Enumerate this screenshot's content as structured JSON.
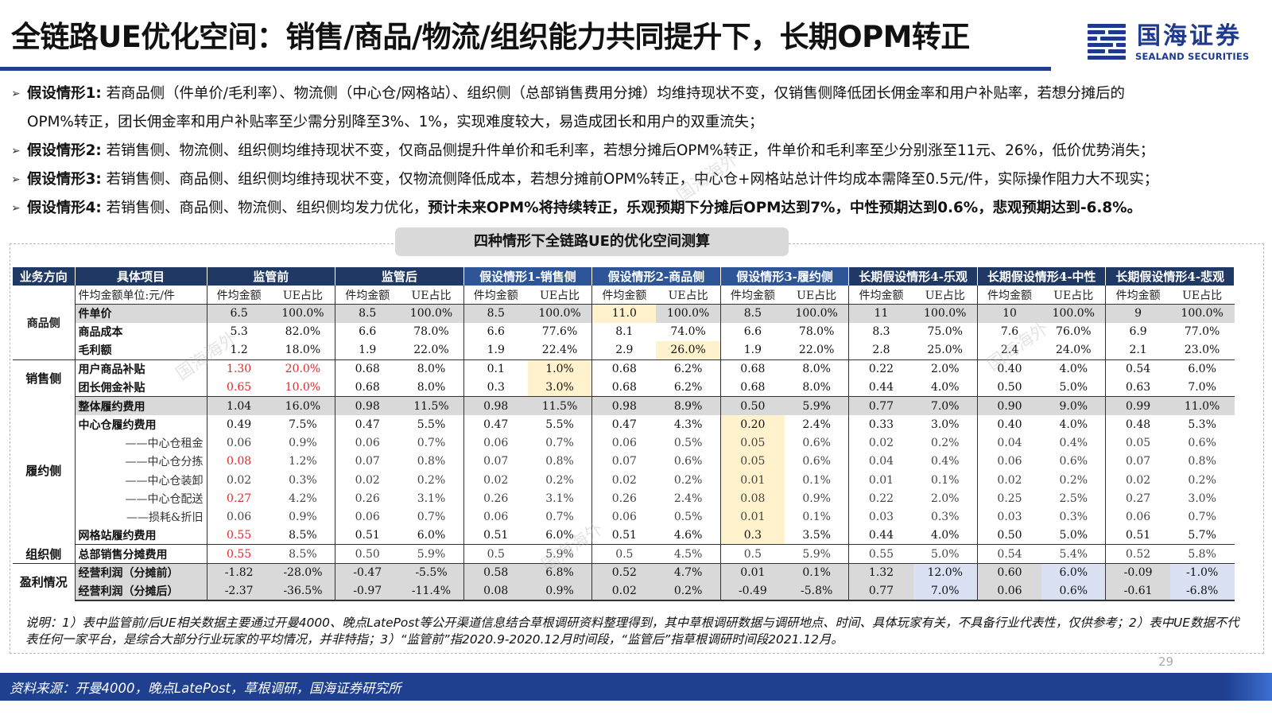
{
  "title": "全链路UE优化空间：销售/商品/物流/组织能力共同提升下，长期OPM转正",
  "logo": {
    "cn": "国海证券",
    "en": "SEALAND SECURITIES"
  },
  "bullets": [
    {
      "label": "假设情形1:",
      "text": "若商品侧（件单价/毛利率）、物流侧（中心仓/网格站）、组织侧（总部销售费用分摊）均维持现状不变，仅销售侧降低团长佣金率和用户补贴率，若想分摊后的",
      "cont": "OPM%转正，团长佣金率和用户补贴率至少需分别降至3%、1%，实现难度较大，易造成团长和用户的双重流失；"
    },
    {
      "label": "假设情形2:",
      "text": "若销售侧、物流侧、组织侧均维持现状不变，仅商品侧提升件单价和毛利率，若想分摊后OPM%转正，件单价和毛利率至少分别涨至11元、26%，低价优势消失；"
    },
    {
      "label": "假设情形3:",
      "text": "若销售侧、商品侧、组织侧均维持现状不变，仅物流侧降低成本，若想分摊前OPM%转正，中心仓+网格站总计件均成本需降至0.5元/件，实际操作阻力大不现实；"
    },
    {
      "label": "假设情形4:",
      "text": "若销售侧、商品侧、物流侧、组织侧均发力优化，",
      "bold": "预计未来OPM%将持续转正，乐观预期下分摊后OPM达到7%，中性预期达到0.6%，悲观预期达到-6.8%。"
    }
  ],
  "table_title": "四种情形下全链路UE的优化空间测算",
  "table": {
    "col_dir": "业务方向",
    "col_item": "具体项目",
    "scenarios": [
      "监管前",
      "监管后",
      "假设情形1-销售侧",
      "假设情形2-商品侧",
      "假设情形3-履约侧",
      "长期假设情形4-乐观",
      "长期假设情形4-中性",
      "长期假设情形4-悲观"
    ],
    "unit_label": "件均金额单位:元/件",
    "sub_amount": "件均金额",
    "sub_ratio": "UE占比",
    "categories": {
      "product": "商品侧",
      "sales": "销售侧",
      "fulfill": "履约侧",
      "org": "组织侧",
      "profit": "盈利情况"
    },
    "rows": [
      {
        "item": "件单价",
        "v": [
          "6.5",
          "100.0%",
          "8.5",
          "100.0%",
          "8.5",
          "100.0%",
          "11.0",
          "100.0%",
          "8.5",
          "100.0%",
          "11",
          "100.0%",
          "10",
          "100.0%",
          "9",
          "100.0%"
        ]
      },
      {
        "item": "商品成本",
        "v": [
          "5.3",
          "82.0%",
          "6.6",
          "78.0%",
          "6.6",
          "77.6%",
          "8.1",
          "74.0%",
          "6.6",
          "78.0%",
          "8.3",
          "75.0%",
          "7.6",
          "76.0%",
          "6.9",
          "77.0%"
        ]
      },
      {
        "item": "毛利额",
        "v": [
          "1.2",
          "18.0%",
          "1.9",
          "22.0%",
          "1.9",
          "22.4%",
          "2.9",
          "26.0%",
          "1.9",
          "22.0%",
          "2.8",
          "25.0%",
          "2.4",
          "24.0%",
          "2.1",
          "23.0%"
        ]
      },
      {
        "item": "用户商品补贴",
        "v": [
          "1.30",
          "20.0%",
          "0.68",
          "8.0%",
          "0.1",
          "1.0%",
          "0.68",
          "6.2%",
          "0.68",
          "8.0%",
          "0.22",
          "2.0%",
          "0.40",
          "4.0%",
          "0.54",
          "6.0%"
        ]
      },
      {
        "item": "团长佣金补贴",
        "v": [
          "0.65",
          "10.0%",
          "0.68",
          "8.0%",
          "0.3",
          "3.0%",
          "0.68",
          "6.2%",
          "0.68",
          "8.0%",
          "0.44",
          "4.0%",
          "0.50",
          "5.0%",
          "0.63",
          "7.0%"
        ]
      },
      {
        "item": "整体履约费用",
        "v": [
          "1.04",
          "16.0%",
          "0.98",
          "11.5%",
          "0.98",
          "11.5%",
          "0.98",
          "8.9%",
          "0.50",
          "5.9%",
          "0.77",
          "7.0%",
          "0.90",
          "9.0%",
          "0.99",
          "11.0%"
        ]
      },
      {
        "item": "中心仓履约费用",
        "v": [
          "0.49",
          "7.5%",
          "0.47",
          "5.5%",
          "0.47",
          "5.5%",
          "0.47",
          "4.3%",
          "0.20",
          "2.4%",
          "0.33",
          "3.0%",
          "0.40",
          "4.0%",
          "0.48",
          "5.3%"
        ]
      },
      {
        "item": "——中心仓租金",
        "v": [
          "0.06",
          "0.9%",
          "0.06",
          "0.7%",
          "0.06",
          "0.7%",
          "0.06",
          "0.5%",
          "0.05",
          "0.6%",
          "0.02",
          "0.2%",
          "0.04",
          "0.4%",
          "0.05",
          "0.6%"
        ]
      },
      {
        "item": "——中心仓分拣",
        "v": [
          "0.08",
          "1.2%",
          "0.07",
          "0.8%",
          "0.07",
          "0.8%",
          "0.07",
          "0.6%",
          "0.05",
          "0.6%",
          "0.04",
          "0.4%",
          "0.06",
          "0.6%",
          "0.07",
          "0.8%"
        ]
      },
      {
        "item": "——中心仓装卸",
        "v": [
          "0.02",
          "0.3%",
          "0.02",
          "0.2%",
          "0.02",
          "0.2%",
          "0.02",
          "0.2%",
          "0.01",
          "0.1%",
          "0.01",
          "0.1%",
          "0.02",
          "0.2%",
          "0.02",
          "0.2%"
        ]
      },
      {
        "item": "——中心仓配送",
        "v": [
          "0.27",
          "4.2%",
          "0.26",
          "3.1%",
          "0.26",
          "3.1%",
          "0.26",
          "2.4%",
          "0.08",
          "0.9%",
          "0.22",
          "2.0%",
          "0.25",
          "2.5%",
          "0.27",
          "3.0%"
        ]
      },
      {
        "item": "——损耗&折旧",
        "v": [
          "0.06",
          "0.9%",
          "0.06",
          "0.7%",
          "0.06",
          "0.7%",
          "0.06",
          "0.5%",
          "0.01",
          "0.1%",
          "0.03",
          "0.3%",
          "0.03",
          "0.3%",
          "0.06",
          "0.7%"
        ]
      },
      {
        "item": "网格站履约费用",
        "v": [
          "0.55",
          "8.5%",
          "0.51",
          "6.0%",
          "0.51",
          "6.0%",
          "0.51",
          "4.6%",
          "0.3",
          "3.5%",
          "0.44",
          "4.0%",
          "0.50",
          "5.0%",
          "0.51",
          "5.7%"
        ]
      },
      {
        "item": "总部销售分摊费用",
        "v": [
          "0.55",
          "8.5%",
          "0.50",
          "5.9%",
          "0.5",
          "5.9%",
          "0.5",
          "4.5%",
          "0.5",
          "5.9%",
          "0.55",
          "5.0%",
          "0.54",
          "5.4%",
          "0.52",
          "5.8%"
        ]
      },
      {
        "item": "经营利润（分摊前）",
        "v": [
          "-1.82",
          "-28.0%",
          "-0.47",
          "-5.5%",
          "0.58",
          "6.8%",
          "0.52",
          "4.7%",
          "0.01",
          "0.1%",
          "1.32",
          "12.0%",
          "0.60",
          "6.0%",
          "-0.09",
          "-1.0%"
        ]
      },
      {
        "item": "经营利润（分摊后）",
        "v": [
          "-2.37",
          "-36.5%",
          "-0.97",
          "-11.4%",
          "0.08",
          "0.9%",
          "0.02",
          "0.2%",
          "-0.49",
          "-5.8%",
          "0.77",
          "7.0%",
          "0.06",
          "0.6%",
          "-0.61",
          "-6.8%"
        ]
      }
    ]
  },
  "note": "说明：1）表中监管前/后UE相关数据主要通过开曼4000、晚点LatePost等公开渠道信息结合草根调研资料整理得到，其中草根调研数据与调研地点、时间、具体玩家有关，不具备行业代表性，仅供参考；2）表中UE数据不代表任何一家平台，是综合大部分行业玩家的平均情况，并非特指；3）“监管前”指2020.9-2020.12月时间段，“监管后”指草根调研时间段2021.12月。",
  "page_number": "29",
  "footer": "资料来源：开曼4000，晚点LatePost，草根调研，国海证券研究所",
  "watermark": "国海海外",
  "colors": {
    "brand": "#1f3f8f",
    "header": "#203864",
    "scenario_header": "#2e5597",
    "highlight_yellow": "#fff2cc",
    "highlight_blue": "#d9e1f2",
    "red": "#e2282a"
  }
}
